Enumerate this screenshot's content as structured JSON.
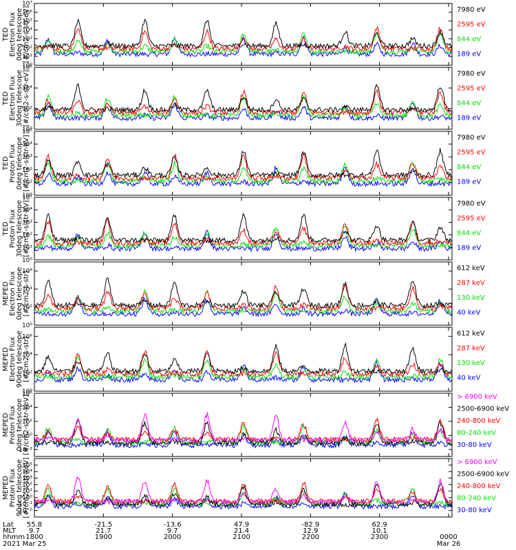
{
  "chart_data": {
    "type": "line",
    "x_tick_hhmm": [
      "1800",
      "1900",
      "2000",
      "2100",
      "2200",
      "2300",
      "0000"
    ],
    "panels": [
      {
        "ylabel_lines": [
          "TED",
          "Electron Flux",
          "0deg telescope",
          "[#/cm2-s-str-eV]"
        ],
        "y_ticks": [
          0,
          1,
          2,
          3,
          4,
          5,
          6,
          7
        ],
        "ylim_log10": [
          0,
          7
        ],
        "series": [
          {
            "name": "7980 eV",
            "color": "#000000"
          },
          {
            "name": "2595 eV",
            "color": "#ff0000"
          },
          {
            "name": "844 eV",
            "color": "#00e000"
          },
          {
            "name": "189 eV",
            "color": "#0000ff"
          }
        ]
      },
      {
        "ylabel_lines": [
          "TED",
          "Electron Flux",
          "30deg telescope",
          "[#/cm2-s-str-eV]"
        ],
        "y_ticks": [
          0,
          2,
          4,
          6
        ],
        "ylim_log10": [
          0,
          6
        ],
        "series": [
          {
            "name": "7980 eV",
            "color": "#000000"
          },
          {
            "name": "2595 eV",
            "color": "#ff0000"
          },
          {
            "name": "844 eV",
            "color": "#00e000"
          },
          {
            "name": "189 eV",
            "color": "#0000ff"
          }
        ]
      },
      {
        "ylabel_lines": [
          "TED",
          "Proton Flux",
          "0deg telescope",
          "[#/cm2-s-str-eV]"
        ],
        "y_ticks": [
          0,
          1,
          2,
          3,
          4,
          5
        ],
        "ylim_log10": [
          0,
          5
        ],
        "series": [
          {
            "name": "7980 eV",
            "color": "#000000"
          },
          {
            "name": "2595 eV",
            "color": "#ff0000"
          },
          {
            "name": "844 eV",
            "color": "#00e000"
          },
          {
            "name": "189 eV",
            "color": "#0000ff"
          }
        ]
      },
      {
        "ylabel_lines": [
          "TED",
          "Proton Flux",
          "30deg telescope",
          "[#/cm2-s-str-eV]"
        ],
        "y_ticks": [
          0,
          1,
          2,
          3,
          4,
          5
        ],
        "ylim_log10": [
          0,
          5
        ],
        "series": [
          {
            "name": "7980 eV",
            "color": "#000000"
          },
          {
            "name": "2595 eV",
            "color": "#ff0000"
          },
          {
            "name": "844 eV",
            "color": "#00e000"
          },
          {
            "name": "189 eV",
            "color": "#0000ff"
          }
        ]
      },
      {
        "ylabel_lines": [
          "MEPED",
          "Electron Flux",
          "0deg telescope",
          "[#/cm2-s-str]"
        ],
        "y_ticks": [
          0,
          2,
          4,
          6
        ],
        "ylim_log10": [
          0,
          7
        ],
        "series": [
          {
            "name": "612 keV",
            "color": "#000000"
          },
          {
            "name": "287 keV",
            "color": "#ff0000"
          },
          {
            "name": "130 keV",
            "color": "#00e000"
          },
          {
            "name": "40 keV",
            "color": "#0000ff"
          }
        ]
      },
      {
        "ylabel_lines": [
          "MEPED",
          "Electron Flux",
          "90deg telescope",
          "[#/cm2-s-str]"
        ],
        "y_ticks": [
          0,
          2,
          4,
          6
        ],
        "ylim_log10": [
          0,
          7
        ],
        "series": [
          {
            "name": "612 keV",
            "color": "#000000"
          },
          {
            "name": "287 keV",
            "color": "#ff0000"
          },
          {
            "name": "130 keV",
            "color": "#00e000"
          },
          {
            "name": "40 keV",
            "color": "#0000ff"
          }
        ]
      },
      {
        "ylabel_lines": [
          "MEPED",
          "Proton Flux",
          "0deg telescope",
          "[#/cm2-s-str-keV]"
        ],
        "y_ticks": [
          -2,
          0,
          2,
          4,
          6
        ],
        "ylim_log10": [
          -3,
          6
        ],
        "series": [
          {
            "name": "> 6900 keV",
            "color": "#ff00ff"
          },
          {
            "name": "2500-6900 keV",
            "color": "#000000"
          },
          {
            "name": "240-800 keV",
            "color": "#ff0000"
          },
          {
            "name": "80-240 keV",
            "color": "#00e000"
          },
          {
            "name": "30-80 keV",
            "color": "#0000ff"
          }
        ]
      },
      {
        "ylabel_lines": [
          "MEPED",
          "Proton Flux",
          "90deg telescope",
          "[#/cm2-s-str-keV]"
        ],
        "y_ticks": [
          -2,
          -1,
          0,
          1,
          2,
          3,
          4,
          5
        ],
        "ylim_log10": [
          -3,
          6
        ],
        "series": [
          {
            "name": "> 6900 keV",
            "color": "#ff00ff"
          },
          {
            "name": "2500-6900 keV",
            "color": "#000000"
          },
          {
            "name": "240-800 keV",
            "color": "#ff0000"
          },
          {
            "name": "80-240 keV",
            "color": "#00e000"
          },
          {
            "name": "30-80 keV",
            "color": "#0000ff"
          }
        ]
      }
    ],
    "footer": {
      "row_labels": [
        "Lat",
        "MLT",
        "hhmm",
        "2021"
      ],
      "columns": [
        {
          "lat": "55.8",
          "mlt": "9.7",
          "hhmm": "1800",
          "date": "Mar 25"
        },
        {
          "lat": "-21.5",
          "mlt": "21.7",
          "hhmm": "1900",
          "date": ""
        },
        {
          "lat": "-13.6",
          "mlt": "9.7",
          "hhmm": "2000",
          "date": ""
        },
        {
          "lat": "47.9",
          "mlt": "21.4",
          "hhmm": "2100",
          "date": ""
        },
        {
          "lat": "-82.9",
          "mlt": "12.9",
          "hhmm": "2200",
          "date": ""
        },
        {
          "lat": "62.9",
          "mlt": "10.1",
          "hhmm": "2300",
          "date": ""
        },
        {
          "lat": "",
          "mlt": "",
          "hhmm": "0000",
          "date": "Mar 26"
        }
      ]
    }
  }
}
